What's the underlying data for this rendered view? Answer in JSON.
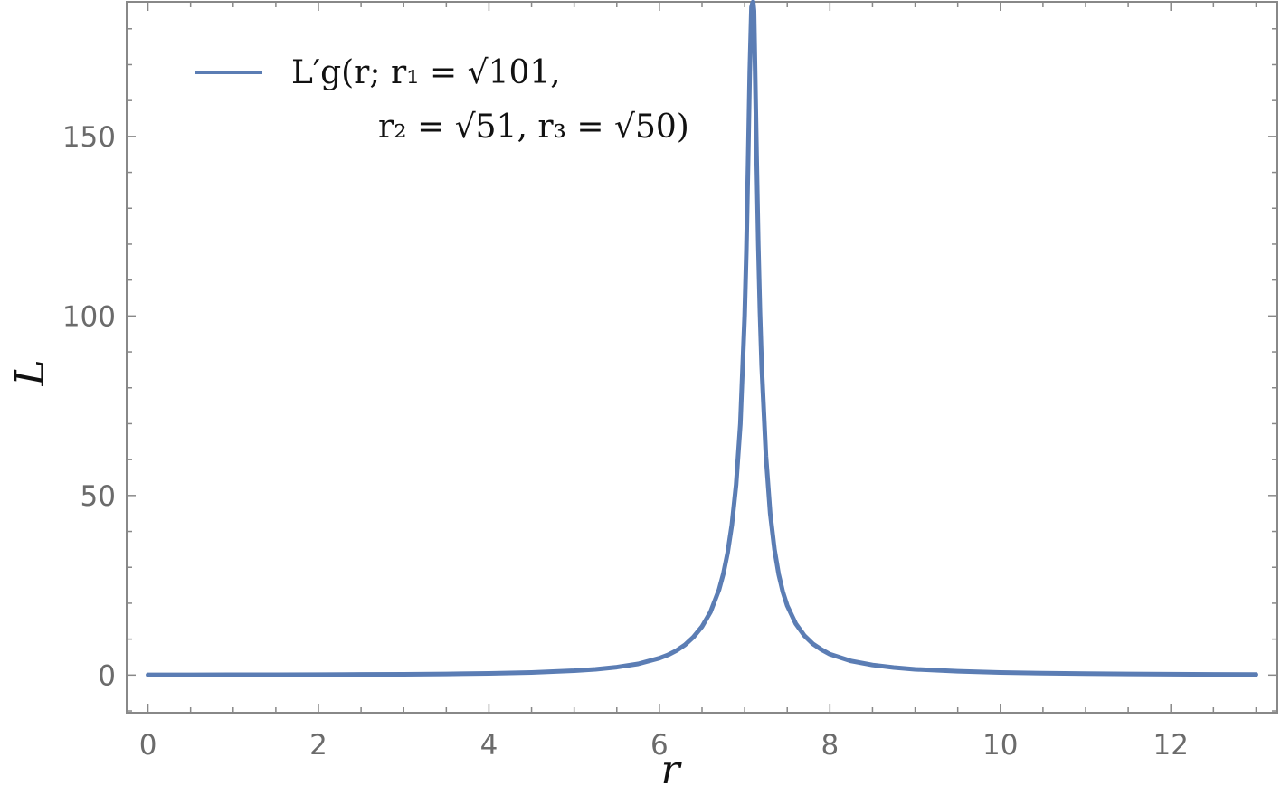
{
  "chart_data": {
    "type": "line",
    "xlabel": "r",
    "ylabel": "L",
    "xlim": [
      -0.25,
      13.25
    ],
    "ylim": [
      -10.5,
      187.5
    ],
    "xticks": [
      0,
      2,
      4,
      6,
      8,
      10,
      12
    ],
    "yticks": [
      0,
      50,
      100,
      150
    ],
    "frame": true,
    "grid": false,
    "legend_position": "top-left",
    "line_color": "#5b7db4",
    "series": [
      {
        "name_line1": "L′g(r; r₁ = √101,",
        "name_line2": "r₂ = √51, r₃ = √50)",
        "x": [
          0,
          0.5,
          1,
          1.5,
          2,
          2.5,
          3,
          3.5,
          4,
          4.5,
          5,
          5.25,
          5.5,
          5.75,
          6,
          6.1,
          6.2,
          6.3,
          6.4,
          6.5,
          6.6,
          6.7,
          6.75,
          6.8,
          6.85,
          6.9,
          6.95,
          7,
          7.02,
          7.04,
          7.06,
          7.08,
          7.09,
          7.1,
          7.11,
          7.12,
          7.14,
          7.16,
          7.18,
          7.2,
          7.25,
          7.3,
          7.35,
          7.4,
          7.45,
          7.5,
          7.6,
          7.7,
          7.8,
          7.9,
          8,
          8.25,
          8.5,
          8.75,
          9,
          9.5,
          10,
          10.5,
          11,
          11.5,
          12,
          12.5,
          13
        ],
        "y": [
          0.05,
          0.06,
          0.07,
          0.09,
          0.12,
          0.16,
          0.22,
          0.31,
          0.46,
          0.7,
          1.2,
          1.6,
          2.2,
          3.1,
          4.7,
          5.6,
          6.8,
          8.4,
          10.6,
          13.5,
          17.6,
          23.8,
          28.2,
          34.0,
          41.8,
          53.0,
          70.0,
          100.0,
          118.0,
          142.0,
          168.0,
          186.0,
          187.0,
          187.5,
          185.0,
          172.0,
          145.0,
          120.0,
          101.0,
          86.0,
          61.0,
          45.0,
          35.0,
          28.0,
          23.0,
          19.3,
          14.3,
          11.0,
          8.7,
          7.1,
          5.8,
          3.9,
          2.8,
          2.1,
          1.6,
          1.05,
          0.72,
          0.52,
          0.39,
          0.3,
          0.23,
          0.18,
          0.15
        ]
      }
    ]
  }
}
